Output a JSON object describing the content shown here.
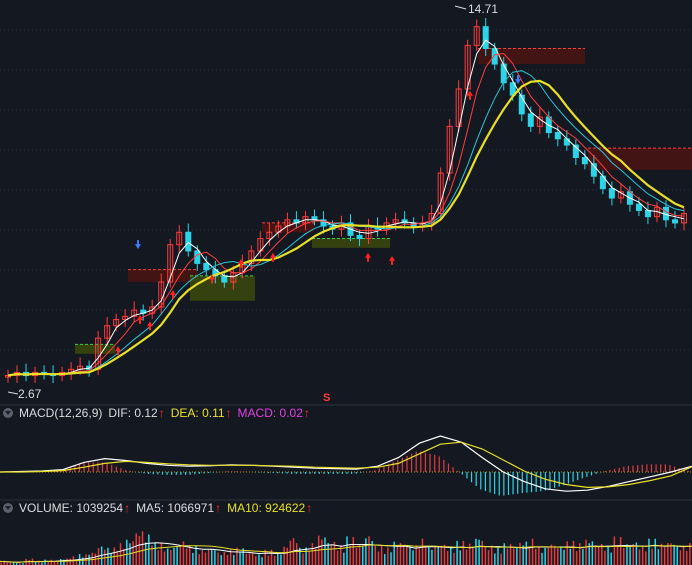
{
  "colors": {
    "background": "#141821",
    "grid": "#2b3240",
    "up": "#ff3b3b",
    "down": "#2bd4e6",
    "ma_short": "#ffffff",
    "ma_mid": "#ff3f3f",
    "ma_long": "#e8e027",
    "ma_cyan": "#26c6d8",
    "dif": "#ffffff",
    "dea": "#e8e027",
    "macd_label": "#e040e0",
    "label_text": "#dcdcdc",
    "zone_green": "#3b4a0c",
    "zone_red": "#4a1410"
  },
  "macd_panel": {
    "label": "MACD(12,26,9)",
    "dif": "DIF: 0.12",
    "dea": "DEA: 0.11",
    "macd": "MACD: 0.02",
    "arrow": "↑"
  },
  "volume_panel": {
    "label": "VOLUME: 1039254",
    "ma5": "MA5: 1066971",
    "ma10": "MA10: 924622",
    "arrow": "↑"
  },
  "chart_data": [
    {
      "type": "candlestick",
      "panel": "price",
      "high_label": "14.71",
      "low_label": "2.67",
      "marker_letter": "S",
      "close": [
        3.0,
        3.1,
        3.0,
        3.1,
        3.05,
        3.0,
        3.1,
        3.2,
        3.3,
        3.2,
        4.2,
        4.6,
        4.8,
        4.9,
        5.1,
        5.0,
        5.2,
        6.0,
        7.2,
        7.6,
        7.0,
        6.6,
        6.4,
        6.2,
        6.0,
        6.3,
        6.6,
        7.0,
        7.4,
        7.6,
        7.8,
        8.0,
        7.9,
        8.1,
        8.0,
        7.8,
        7.7,
        7.9,
        7.5,
        7.4,
        7.8,
        7.7,
        7.9,
        8.0,
        7.9,
        7.8,
        7.9,
        8.2,
        9.5,
        11.0,
        12.2,
        13.6,
        14.2,
        13.5,
        13.0,
        12.4,
        12.0,
        11.4,
        11.0,
        11.3,
        10.8,
        10.6,
        10.4,
        10.0,
        9.8,
        9.4,
        9.0,
        8.7,
        8.9,
        8.5,
        8.3,
        8.1,
        8.4,
        8.0,
        7.9,
        8.2
      ]
    },
    {
      "type": "line",
      "panel": "macd",
      "series": [
        {
          "name": "DIF",
          "values": [
            0.0,
            0.01,
            0.02,
            0.05,
            0.2,
            0.28,
            0.24,
            0.18,
            0.14,
            0.12,
            0.13,
            0.15,
            0.14,
            0.12,
            0.1,
            0.08,
            0.07,
            0.06,
            0.12,
            0.3,
            0.6,
            0.75,
            0.62,
            0.3,
            0.0,
            -0.2,
            -0.35,
            -0.4,
            -0.38,
            -0.3,
            -0.2,
            -0.1,
            0.0,
            0.12
          ]
        },
        {
          "name": "DEA",
          "values": [
            0.0,
            0.0,
            0.01,
            0.03,
            0.1,
            0.18,
            0.22,
            0.2,
            0.17,
            0.15,
            0.14,
            0.14,
            0.14,
            0.13,
            0.12,
            0.1,
            0.09,
            0.08,
            0.1,
            0.18,
            0.38,
            0.58,
            0.62,
            0.48,
            0.25,
            0.02,
            -0.15,
            -0.26,
            -0.32,
            -0.31,
            -0.26,
            -0.18,
            -0.08,
            0.11
          ]
        },
        {
          "name": "MACD",
          "values": [
            0.0,
            0.02,
            0.02,
            0.04,
            0.2,
            0.2,
            0.04,
            -0.04,
            -0.06,
            -0.06,
            -0.02,
            0.02,
            0.0,
            -0.02,
            -0.04,
            -0.04,
            -0.04,
            -0.04,
            0.04,
            0.24,
            0.44,
            0.34,
            0.0,
            -0.36,
            -0.5,
            -0.44,
            -0.4,
            -0.28,
            -0.12,
            0.02,
            0.12,
            0.16,
            0.16,
            0.02
          ]
        }
      ]
    },
    {
      "type": "bar",
      "panel": "volume",
      "values": [
        0.2,
        0.15,
        0.1,
        0.3,
        0.2,
        0.25,
        0.2,
        0.3,
        0.4,
        0.5,
        0.6,
        0.9,
        0.8,
        1.0,
        1.2,
        1.6,
        1.4,
        1.0,
        0.8,
        0.9,
        1.1,
        0.9,
        0.7,
        0.8,
        0.6,
        0.7,
        0.8,
        0.6,
        0.5,
        0.7,
        0.6,
        0.9,
        1.3,
        0.8,
        1.0,
        1.4,
        1.1,
        0.9,
        1.3,
        1.0,
        1.4,
        0.9,
        0.8,
        1.1,
        1.0,
        0.9,
        1.2,
        0.9,
        1.0,
        0.8,
        1.1,
        1.0,
        1.3,
        0.9,
        0.8,
        1.0,
        0.9,
        1.1,
        1.2,
        0.8,
        1.0,
        0.9,
        1.1,
        1.0,
        1.2,
        1.0,
        0.9,
        1.3,
        1.0,
        1.1,
        0.9,
        1.2,
        1.0,
        1.1,
        0.9,
        1.0
      ]
    }
  ]
}
